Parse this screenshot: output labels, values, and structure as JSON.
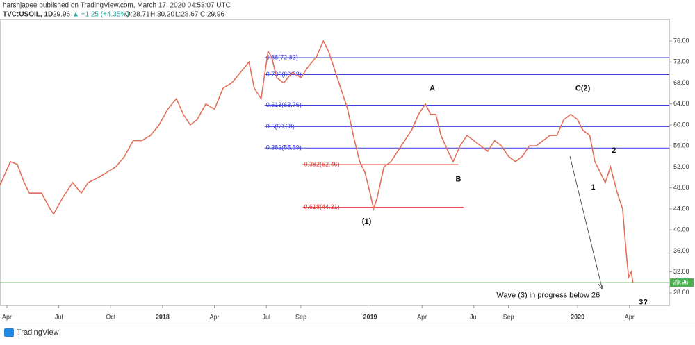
{
  "header": {
    "publisher": "harshjapee published on TradingView.com, March 17, 2020 04:53:07 UTC",
    "symbol": "TVC:USOIL, 1D",
    "last": "29.96",
    "change": "▲ +1.25 (+4.35%)",
    "open": "O:28.71",
    "high": "H:30.20",
    "low": "L:28.67",
    "close": "C:29.96"
  },
  "footer": {
    "brand": "TradingView"
  },
  "chart_data": {
    "type": "line",
    "x": [
      2.6,
      3.2,
      3.6,
      4.0,
      4.3,
      5.0,
      5.5,
      5.7,
      6.2,
      6.8,
      7.3,
      7.7,
      8.3,
      8.8,
      9.3,
      9.8,
      10.3,
      10.8,
      11.3,
      11.8,
      12.3,
      12.8,
      13.2,
      13.6,
      14.0,
      14.5,
      15.0,
      15.5,
      16.0,
      16.5,
      17.0,
      17.3,
      17.7,
      18.1,
      18.3,
      18.6,
      19.0,
      19.5,
      20.0,
      20.4,
      20.9,
      21.3,
      21.6,
      21.9,
      22.3,
      22.7,
      23.1,
      23.4,
      23.7,
      24.0,
      24.2,
      24.4,
      24.8,
      25.2,
      25.6,
      26.0,
      26.4,
      26.8,
      27.2,
      27.5,
      27.8,
      28.1,
      28.5,
      28.8,
      29.2,
      29.6,
      30.0,
      30.4,
      30.8,
      31.2,
      31.6,
      32.0,
      32.4,
      32.8,
      33.2,
      33.6,
      34.0,
      34.4,
      34.8,
      35.2,
      35.6,
      36.0,
      36.3,
      36.7,
      37.0,
      37.3,
      37.6,
      37.9,
      38.3,
      38.6,
      38.8,
      38.95,
      39.1,
      39.2
    ],
    "series": [
      {
        "name": "TVC:USOIL",
        "color": "#e0705a",
        "values": [
          48.5,
          53,
          52.5,
          49,
          47,
          47,
          44,
          43,
          46,
          49,
          47,
          49,
          50,
          51,
          52,
          54,
          57,
          57,
          58,
          60,
          63,
          65,
          62,
          60,
          61,
          64,
          63,
          67,
          68,
          70,
          72,
          67,
          65,
          74,
          73,
          69,
          68,
          70,
          69,
          71,
          73,
          76,
          74,
          71,
          67,
          63,
          57,
          53,
          51,
          47,
          44,
          46,
          52,
          53,
          55,
          57,
          59,
          62,
          64,
          62,
          62,
          58,
          55,
          53,
          56,
          58,
          57,
          56,
          55,
          57,
          56,
          54,
          53,
          54,
          56,
          56,
          57,
          58,
          58,
          61,
          62,
          61,
          59,
          58,
          53,
          51,
          49,
          52,
          47,
          44,
          36,
          31,
          32,
          29.96
        ]
      }
    ],
    "xlim": [
      2.6,
      41.3
    ],
    "ylim": [
      25.6,
      80.5
    ],
    "xticks": [
      {
        "value": 3,
        "label": "Apr"
      },
      {
        "value": 6,
        "label": "Jul"
      },
      {
        "value": 9,
        "label": "Oct"
      },
      {
        "value": 12,
        "label": "2018"
      },
      {
        "value": 15,
        "label": "Apr"
      },
      {
        "value": 18,
        "label": "Jul"
      },
      {
        "value": 20,
        "label": "Sep"
      },
      {
        "value": 24,
        "label": "2019"
      },
      {
        "value": 27,
        "label": "Apr"
      },
      {
        "value": 30,
        "label": "Jul"
      },
      {
        "value": 32,
        "label": "Sep"
      },
      {
        "value": 36,
        "label": "2020"
      },
      {
        "value": 39,
        "label": "Apr"
      }
    ],
    "yticks": [
      {
        "value": 28,
        "label": "28.00"
      },
      {
        "value": 32,
        "label": "32.00"
      },
      {
        "value": 36,
        "label": "36.00"
      },
      {
        "value": 40,
        "label": "40.00"
      },
      {
        "value": 44,
        "label": "44.00"
      },
      {
        "value": 48,
        "label": "48.00"
      },
      {
        "value": 52,
        "label": "52.00"
      },
      {
        "value": 56,
        "label": "56.00"
      },
      {
        "value": 60,
        "label": "60.00"
      },
      {
        "value": 64,
        "label": "64.00"
      },
      {
        "value": 68,
        "label": "68.00"
      },
      {
        "value": 72,
        "label": "72.00"
      },
      {
        "value": 76,
        "label": "76.00"
      }
    ],
    "last_price": {
      "value": 29.96,
      "label": "29.96",
      "color": "#4caf50"
    },
    "levels": [
      {
        "value": 72.83,
        "label": "0.88(72.83)",
        "color": "#3f3fe0",
        "x_range": [
          17.9,
          41.3
        ]
      },
      {
        "value": 69.58,
        "label": "0.786(69.58)",
        "color": "#3f3fe0",
        "x_range": [
          17.9,
          41.3
        ]
      },
      {
        "value": 63.76,
        "label": "0.618(63.76)",
        "color": "#3f3fe0",
        "x_range": [
          17.9,
          41.3
        ]
      },
      {
        "value": 59.68,
        "label": "0.5(59.68)",
        "color": "#3f3fe0",
        "x_range": [
          17.9,
          41.3
        ]
      },
      {
        "value": 55.59,
        "label": "0.382(55.59)",
        "color": "#3f3fe0",
        "x_range": [
          17.9,
          41.3
        ]
      },
      {
        "value": 52.46,
        "label": "0.382(52.46)",
        "color": "#e53935",
        "x_range": [
          20.1,
          29.1
        ]
      },
      {
        "value": 44.31,
        "label": "0.618(44.31)",
        "color": "#e53935",
        "x_range": [
          20.1,
          29.4
        ]
      }
    ],
    "annotations": [
      {
        "text": "A",
        "x": 27.6,
        "y": 66.9
      },
      {
        "text": "B",
        "x": 29.1,
        "y": 49.6
      },
      {
        "text": "(1)",
        "x": 23.8,
        "y": 41.6
      },
      {
        "text": "C(2)",
        "x": 36.3,
        "y": 66.9
      },
      {
        "text": "2",
        "x": 38.1,
        "y": 55.1
      },
      {
        "text": "1",
        "x": 36.9,
        "y": 48.1
      },
      {
        "text": "3?",
        "x": 39.8,
        "y": 26.2
      }
    ],
    "note": {
      "text": "Wave (3) in progress below 26",
      "x": 34.3,
      "y": 27.5
    }
  }
}
